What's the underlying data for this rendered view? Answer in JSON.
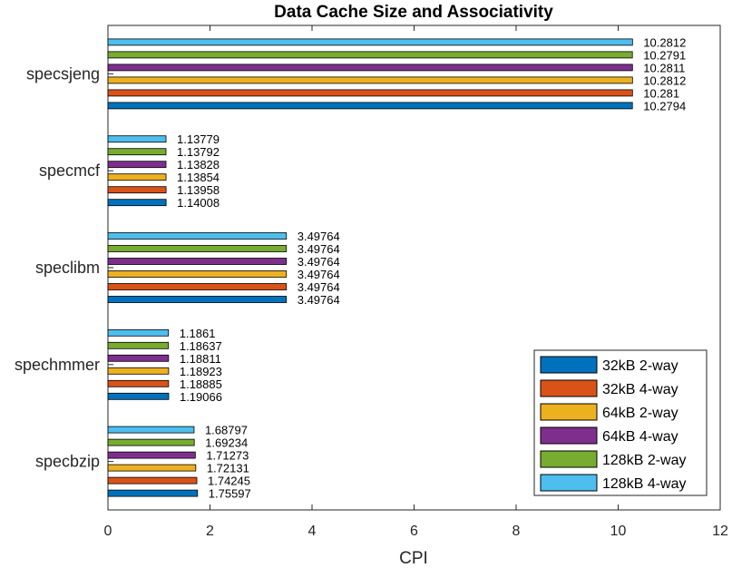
{
  "chart_data": {
    "type": "bar",
    "orientation": "horizontal",
    "title": "Data Cache Size and Associativity",
    "xlabel": "CPI",
    "ylabel": "",
    "xlim": [
      0,
      12
    ],
    "xticks": [
      0,
      2,
      4,
      6,
      8,
      10,
      12
    ],
    "categories": [
      "specbzip",
      "spechmmer",
      "speclibm",
      "specmcf",
      "specsjeng"
    ],
    "legend_position": "bottom-right",
    "series": [
      {
        "name": "32kB 2-way",
        "color": "#0072BD",
        "values": [
          1.75597,
          1.19066,
          3.49764,
          1.14008,
          10.2794
        ]
      },
      {
        "name": "32kB 4-way",
        "color": "#D95319",
        "values": [
          1.74245,
          1.18885,
          3.49764,
          1.13958,
          10.281
        ]
      },
      {
        "name": "64kB 2-way",
        "color": "#EDB120",
        "values": [
          1.72131,
          1.18923,
          3.49764,
          1.13854,
          10.2812
        ]
      },
      {
        "name": "64kB 4-way",
        "color": "#7E2F8E",
        "values": [
          1.71273,
          1.18811,
          3.49764,
          1.13828,
          10.2811
        ]
      },
      {
        "name": "128kB 2-way",
        "color": "#77AC30",
        "values": [
          1.69234,
          1.18637,
          3.49764,
          1.13792,
          10.2791
        ]
      },
      {
        "name": "128kB 4-way",
        "color": "#4DBEEE",
        "values": [
          1.68797,
          1.1861,
          3.49764,
          1.13779,
          10.2812
        ]
      }
    ]
  }
}
